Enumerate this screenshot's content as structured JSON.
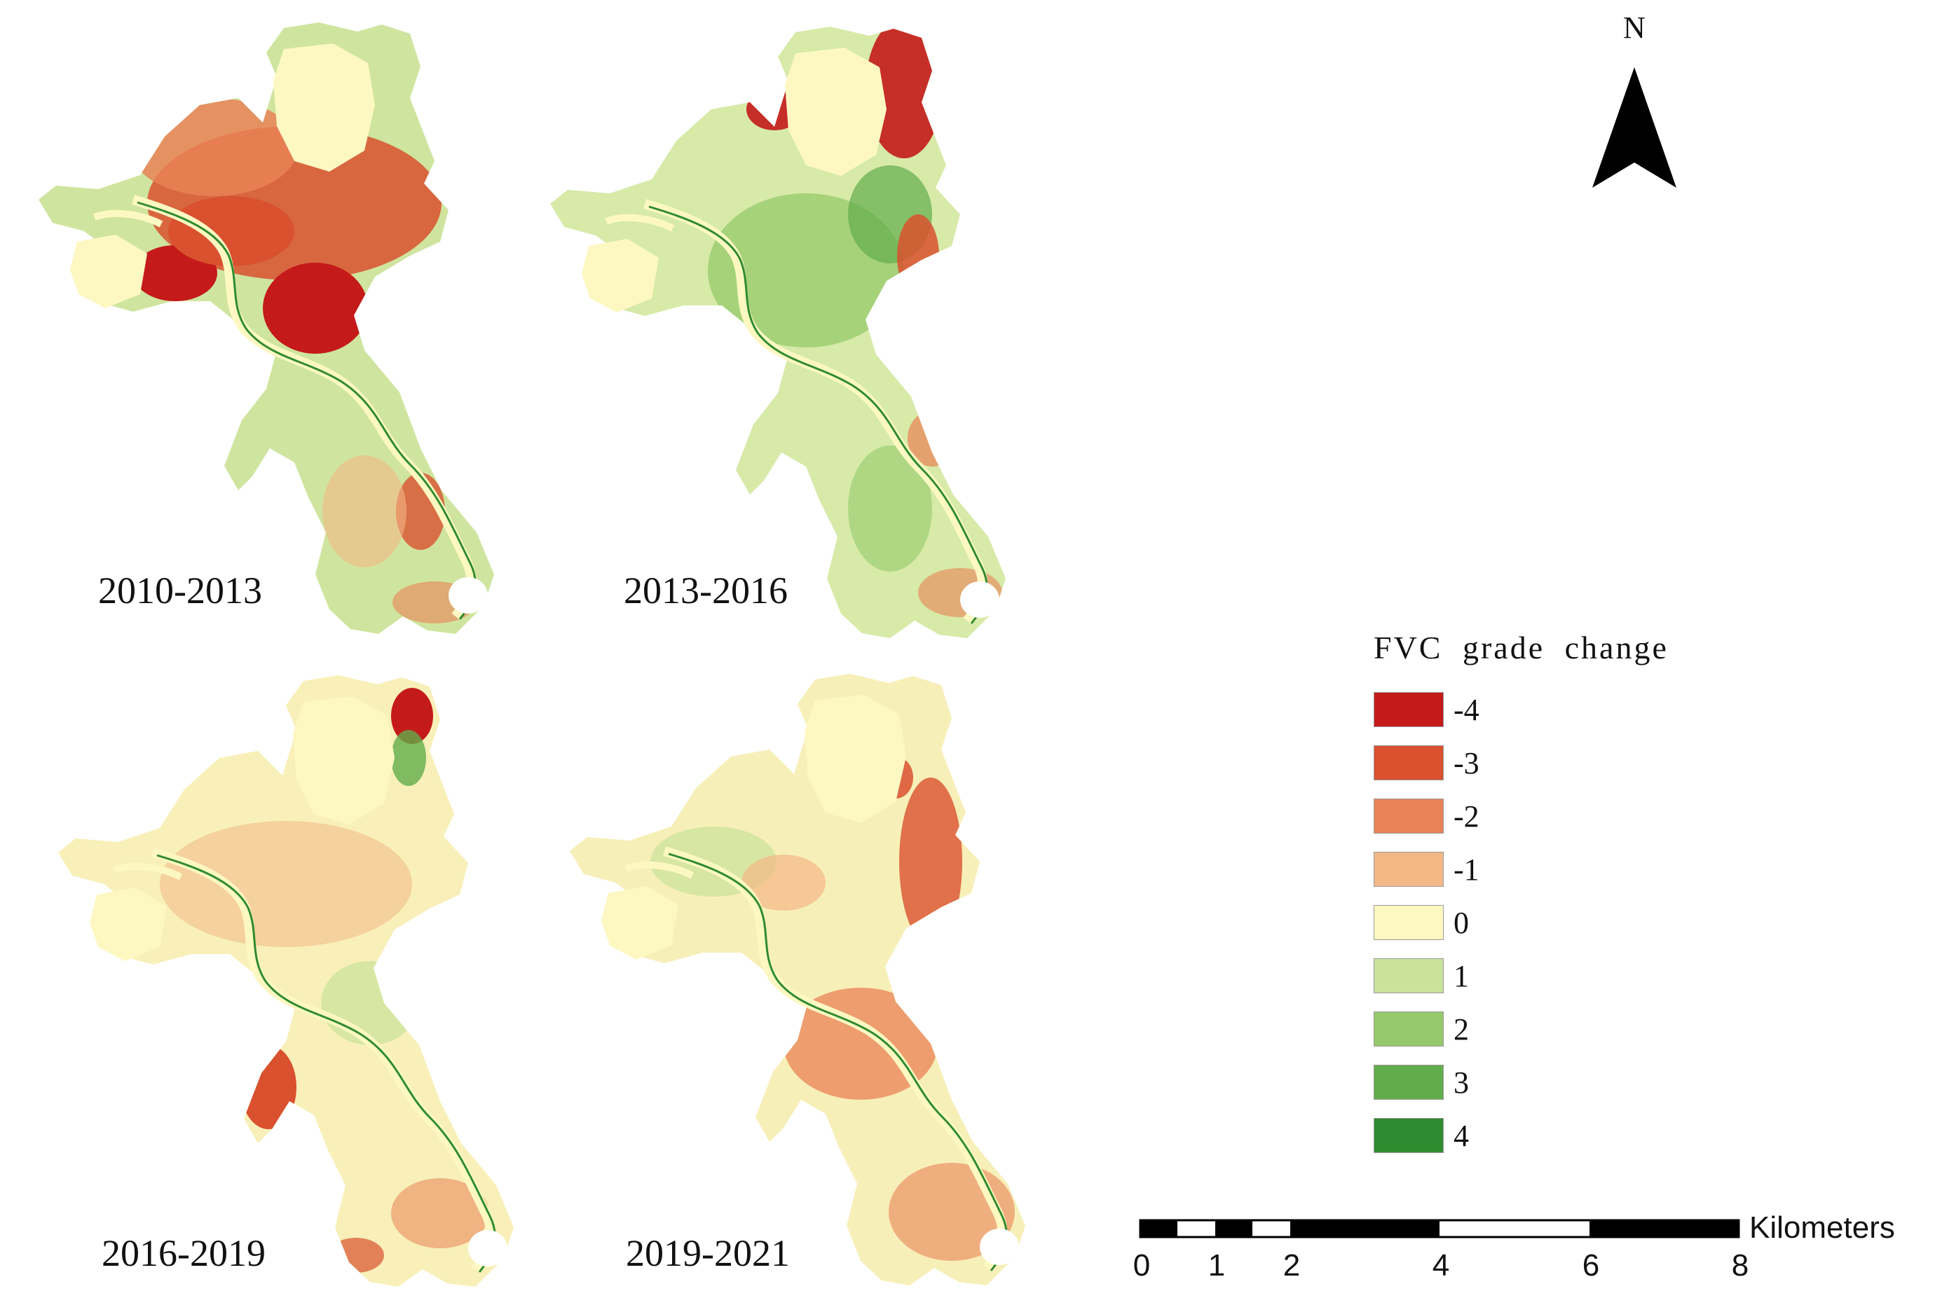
{
  "panels": [
    {
      "label": "2010-2013"
    },
    {
      "label": "2013-2016"
    },
    {
      "label": "2016-2019"
    },
    {
      "label": "2019-2021"
    }
  ],
  "north_arrow": {
    "letter": "N"
  },
  "legend": {
    "title": "FVC grade change",
    "items": [
      {
        "label": "-4",
        "color": "#c41a1a"
      },
      {
        "label": "-3",
        "color": "#d9512f"
      },
      {
        "label": "-2",
        "color": "#e98256"
      },
      {
        "label": "-1",
        "color": "#f3b886"
      },
      {
        "label": "0",
        "color": "#fdf8c2"
      },
      {
        "label": "1",
        "color": "#c9e39a"
      },
      {
        "label": "2",
        "color": "#95c96b"
      },
      {
        "label": "3",
        "color": "#62ad4b"
      },
      {
        "label": "4",
        "color": "#2f8b2f"
      }
    ]
  },
  "scale_bar": {
    "unit": "Kilometers",
    "ticks": [
      "0",
      "1",
      "2",
      "4",
      "6",
      "8"
    ]
  }
}
